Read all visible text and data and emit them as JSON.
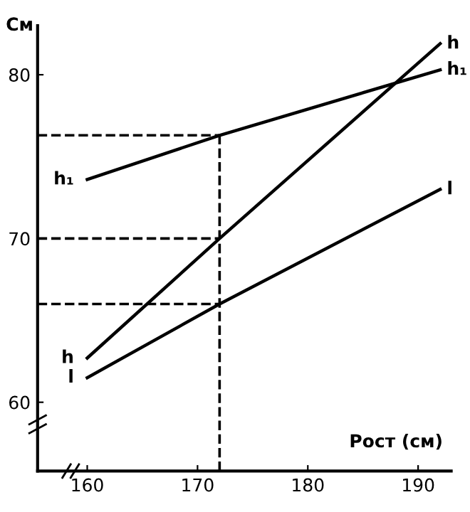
{
  "chart_data": {
    "type": "line",
    "xlabel": "Рост (см)",
    "ylabel": "См",
    "xlim": [
      155.5,
      193
    ],
    "ylim": [
      55.8,
      83
    ],
    "xticks": [
      160,
      170,
      180,
      190
    ],
    "yticks": [
      60,
      70,
      80
    ],
    "grid": false,
    "legend": false,
    "marker": "none",
    "line_style": "solid",
    "series": [
      {
        "name": "h₁",
        "color": "#000000",
        "x": [
          160,
          172,
          192
        ],
        "values": [
          73.6,
          76.3,
          80.3
        ]
      },
      {
        "name": "h",
        "color": "#000000",
        "x": [
          160,
          172,
          192
        ],
        "values": [
          62.7,
          70,
          81.9
        ]
      },
      {
        "name": "l",
        "color": "#000000",
        "x": [
          160,
          172,
          192
        ],
        "values": [
          61.5,
          66,
          73
        ]
      }
    ],
    "ref_lines": [
      {
        "axis": "x",
        "value": 172,
        "line_style": "dashed"
      },
      {
        "axis": "y",
        "value": 76.3,
        "line_style": "dashed"
      },
      {
        "axis": "y",
        "value": 70,
        "line_style": "dashed"
      },
      {
        "axis": "y",
        "value": 66,
        "line_style": "dashed"
      }
    ]
  }
}
